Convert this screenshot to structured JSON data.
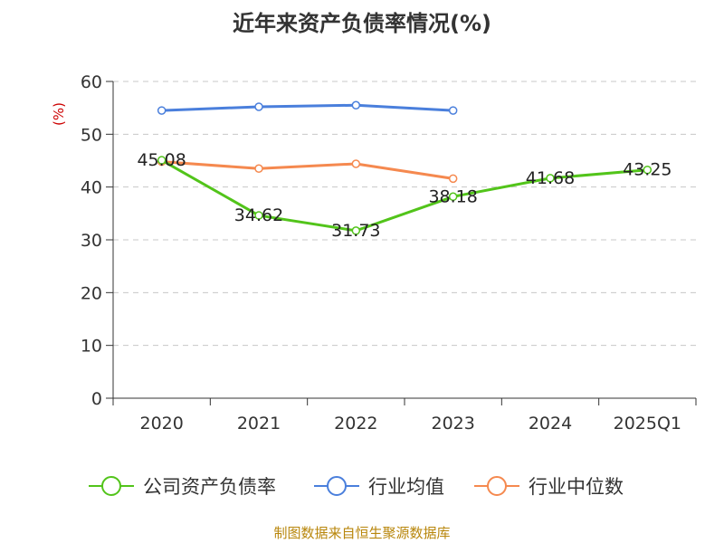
{
  "chart_data": {
    "type": "line",
    "title": "近年来资产负债率情况(%)",
    "ylabel": "(%)",
    "xlabel": "",
    "categories": [
      "2020",
      "2021",
      "2022",
      "2023",
      "2024",
      "2025Q1"
    ],
    "ylim": [
      0,
      60
    ],
    "yticks": [
      0,
      10,
      20,
      30,
      40,
      50,
      60
    ],
    "grid": true,
    "legend_position": "bottom",
    "series": [
      {
        "name": "公司资产负债率",
        "color": "#52c41a",
        "values": [
          45.08,
          34.62,
          31.73,
          38.18,
          41.68,
          43.25
        ],
        "labels": [
          "45.08",
          "34.62",
          "31.73",
          "38.18",
          "41.68",
          "43.25"
        ]
      },
      {
        "name": "行业均值",
        "color": "#4a7fdc",
        "values": [
          54.5,
          55.2,
          55.5,
          54.5,
          null,
          null
        ]
      },
      {
        "name": "行业中位数",
        "color": "#f5894f",
        "values": [
          44.8,
          43.5,
          44.4,
          41.6,
          null,
          null
        ]
      }
    ]
  },
  "footer": {
    "source": "制图数据来自恒生聚源数据库"
  }
}
